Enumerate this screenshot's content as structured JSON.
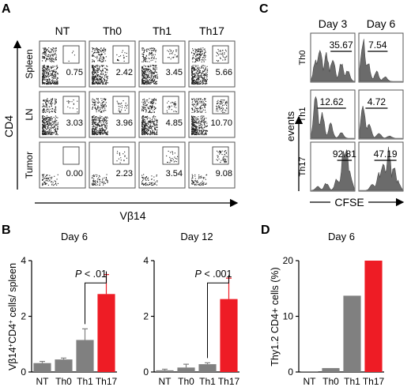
{
  "panels": {
    "A": {
      "label": "A",
      "columns": [
        "NT",
        "Th0",
        "Th1",
        "Th17"
      ],
      "rows": [
        "Spleen",
        "LN",
        "Tumor"
      ],
      "values": [
        [
          "0.75",
          "2.42",
          "3.45",
          "5.66"
        ],
        [
          "3.03",
          "3.96",
          "4.85",
          "10.70"
        ],
        [
          "0.00",
          "2.23",
          "3.54",
          "9.08"
        ]
      ],
      "ylabel": "CD4",
      "xlabel": "Vβ14"
    },
    "C": {
      "label": "C",
      "columns": [
        "Day 3",
        "Day 6"
      ],
      "rows": [
        "Th0",
        "Th1",
        "Th17"
      ],
      "values": [
        [
          "35.67",
          "7.54"
        ],
        [
          "12.62",
          "4.72"
        ],
        [
          "92.81",
          "47.19"
        ]
      ],
      "ylabel": "events",
      "xlabel": "CFSE"
    },
    "B": {
      "label": "B"
    },
    "D": {
      "label": "D"
    }
  },
  "chart_data": [
    {
      "type": "bar",
      "panel": "B",
      "title": "Day 6",
      "ylabel_main": "Vβ14",
      "ylabel_sup1": "+",
      "ylabel_mid": "CD4",
      "ylabel_sup2": "+",
      "ylabel_end": " cells/ spleen",
      "categories": [
        "NT",
        "Th0",
        "Th1",
        "Th17"
      ],
      "values": [
        0.32,
        0.45,
        1.15,
        2.8
      ],
      "errors": [
        0.06,
        0.05,
        0.4,
        0.7
      ],
      "colors": [
        "#808080",
        "#808080",
        "#808080",
        "#ee1c25"
      ],
      "ylim": [
        0,
        4
      ],
      "yticks": [
        "0",
        "2",
        "4"
      ],
      "annotation": {
        "p": "P",
        "text": " < .01"
      }
    },
    {
      "type": "bar",
      "panel": "B",
      "title": "Day 12",
      "categories": [
        "NT",
        "Th0",
        "Th1",
        "Th17"
      ],
      "values": [
        0.06,
        0.16,
        0.28,
        2.62
      ],
      "errors": [
        0.04,
        0.12,
        0.05,
        0.75
      ],
      "colors": [
        "#808080",
        "#808080",
        "#808080",
        "#ee1c25"
      ],
      "ylim": [
        0,
        4
      ],
      "yticks": [
        "0",
        "2",
        "4"
      ],
      "annotation": {
        "p": "P",
        "text": " < .001"
      }
    },
    {
      "type": "bar",
      "panel": "D",
      "title": "Day 6",
      "ylabel": "Thy1.2 CD4+ cells (%)",
      "categories": [
        "NT",
        "Th0",
        "Th1",
        "Th17"
      ],
      "values": [
        0.1,
        0.7,
        13.7,
        20.0
      ],
      "colors": [
        "#808080",
        "#808080",
        "#808080",
        "#ee1c25"
      ],
      "ylim": [
        0,
        20
      ],
      "yticks": [
        "0",
        "10",
        "20"
      ]
    }
  ]
}
